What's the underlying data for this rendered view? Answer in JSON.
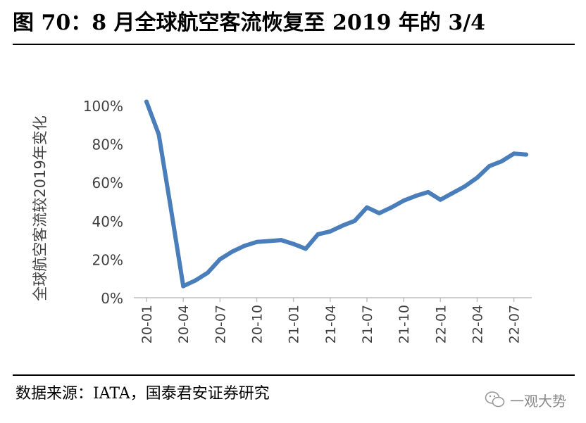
{
  "header": {
    "title": "图 70：8 月全球航空客流恢复至 2019 年的 3/4"
  },
  "footer": {
    "source": "数据来源：IATA，国泰君安证券研究",
    "watermark": "一观大势"
  },
  "colors": {
    "line": "#4a7ebb",
    "axis": "#bfbfbf",
    "text": "#404040"
  },
  "chart_data": {
    "type": "line",
    "title": "",
    "ylabel": "全球航空客流较2019年变化",
    "xlabel": "",
    "ylim": [
      0,
      100
    ],
    "yticks": [
      "0%",
      "20%",
      "40%",
      "60%",
      "80%",
      "100%"
    ],
    "x_tick_labels": [
      "20-01",
      "20-04",
      "20-07",
      "20-10",
      "21-01",
      "21-04",
      "21-07",
      "21-10",
      "22-01",
      "22-04",
      "22-07"
    ],
    "x": [
      "20-01",
      "20-02",
      "20-03",
      "20-04",
      "20-05",
      "20-06",
      "20-07",
      "20-08",
      "20-09",
      "20-10",
      "20-11",
      "20-12",
      "21-01",
      "21-02",
      "21-03",
      "21-04",
      "21-05",
      "21-06",
      "21-07",
      "21-08",
      "21-09",
      "21-10",
      "21-11",
      "21-12",
      "22-01",
      "22-02",
      "22-03",
      "22-04",
      "22-05",
      "22-06",
      "22-07",
      "22-08"
    ],
    "series": [
      {
        "name": "全球航空客流较2019年变化",
        "values": [
          102,
          85,
          46,
          6,
          9,
          13,
          20,
          24,
          27,
          29,
          29.5,
          30,
          28,
          25.5,
          33,
          34.5,
          37.5,
          40,
          47,
          44,
          47,
          50.5,
          53,
          55,
          51,
          54.5,
          58,
          62.5,
          68.5,
          71,
          75,
          74.5
        ]
      }
    ]
  }
}
